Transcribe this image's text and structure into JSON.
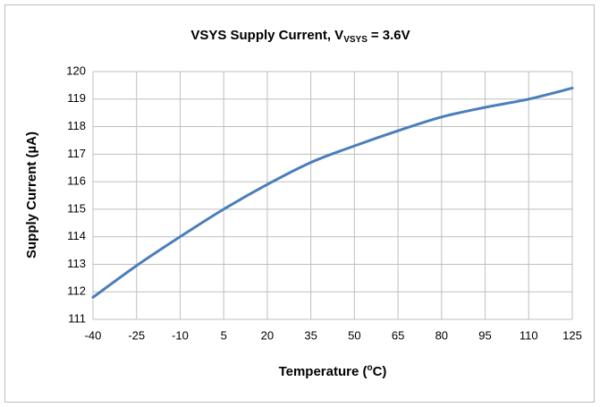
{
  "chart_data": {
    "type": "line",
    "title": {
      "main": "VSYS Supply Current, V",
      "subscript": "VSYS",
      "rest": "= 3.6V"
    },
    "xlabel": {
      "main": "Temperature (",
      "superscript": "o",
      "rest": "C)"
    },
    "ylabel": "Supply Current (µA)",
    "x": [
      -40,
      -25,
      -10,
      5,
      20,
      35,
      50,
      65,
      80,
      95,
      110,
      125
    ],
    "series": [
      {
        "name": "Supply Current",
        "color": "#4a7ebb",
        "values": [
          111.8,
          112.95,
          114.0,
          115.0,
          115.9,
          116.7,
          117.3,
          117.85,
          118.35,
          118.7,
          119.0,
          119.4
        ]
      }
    ],
    "xlim": [
      -40,
      125
    ],
    "xticks": [
      -40,
      -25,
      -10,
      5,
      20,
      35,
      50,
      65,
      80,
      95,
      110,
      125
    ],
    "ylim": [
      111,
      120
    ],
    "yticks": [
      111,
      112,
      113,
      114,
      115,
      116,
      117,
      118,
      119,
      120
    ],
    "grid": true
  }
}
